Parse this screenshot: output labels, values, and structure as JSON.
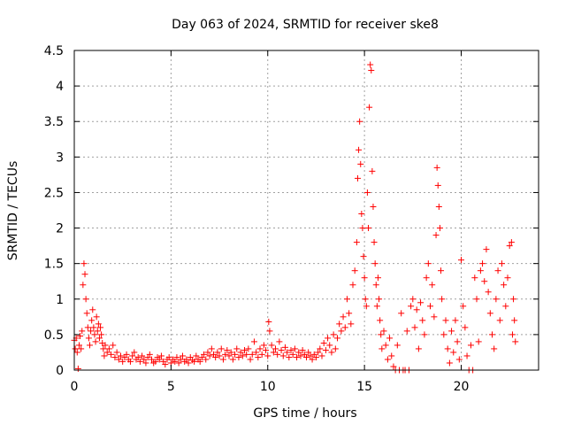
{
  "chart_data": {
    "type": "scatter",
    "title": "Day 063 of 2024, SRMTID for receiver ske8",
    "xlabel": "GPS time / hours",
    "ylabel": "SRMTID / TECUs",
    "xlim": [
      0,
      24
    ],
    "ylim": [
      0,
      4.5
    ],
    "xticks": [
      0,
      5,
      10,
      15,
      20
    ],
    "xtick_labels": [
      "0",
      "5",
      "10",
      "15",
      "20"
    ],
    "yticks": [
      0,
      0.5,
      1,
      1.5,
      2,
      2.5,
      3,
      3.5,
      4,
      4.5
    ],
    "ytick_labels": [
      "0",
      "0.5",
      "1",
      "1.5",
      "2",
      "2.5",
      "3",
      "3.5",
      "4",
      "4.5"
    ],
    "grid": true,
    "marker": "+",
    "series": [
      {
        "name": "SRMTID",
        "color": "#ff0000",
        "points": [
          [
            0.0,
            0.42
          ],
          [
            0.05,
            0.3
          ],
          [
            0.1,
            0.45
          ],
          [
            0.15,
            0.25
          ],
          [
            0.2,
            0.02
          ],
          [
            0.25,
            0.35
          ],
          [
            0.3,
            0.48
          ],
          [
            0.35,
            0.3
          ],
          [
            0.4,
            0.55
          ],
          [
            0.45,
            1.2
          ],
          [
            0.5,
            1.5
          ],
          [
            0.55,
            1.35
          ],
          [
            0.6,
            1.0
          ],
          [
            0.65,
            0.8
          ],
          [
            0.7,
            0.6
          ],
          [
            0.75,
            0.45
          ],
          [
            0.8,
            0.35
          ],
          [
            0.85,
            0.55
          ],
          [
            0.9,
            0.7
          ],
          [
            0.95,
            0.85
          ],
          [
            1.0,
            0.6
          ],
          [
            1.05,
            0.5
          ],
          [
            1.1,
            0.4
          ],
          [
            1.15,
            0.75
          ],
          [
            1.2,
            0.55
          ],
          [
            1.25,
            0.65
          ],
          [
            1.3,
            0.45
          ],
          [
            1.35,
            0.6
          ],
          [
            1.4,
            0.5
          ],
          [
            1.45,
            0.38
          ],
          [
            1.5,
            0.3
          ],
          [
            1.55,
            0.2
          ],
          [
            1.6,
            0.35
          ],
          [
            1.7,
            0.25
          ],
          [
            1.8,
            0.3
          ],
          [
            1.9,
            0.22
          ],
          [
            2.0,
            0.35
          ],
          [
            2.1,
            0.18
          ],
          [
            2.2,
            0.25
          ],
          [
            2.3,
            0.15
          ],
          [
            2.4,
            0.2
          ],
          [
            2.5,
            0.12
          ],
          [
            2.6,
            0.18
          ],
          [
            2.7,
            0.22
          ],
          [
            2.8,
            0.15
          ],
          [
            2.9,
            0.12
          ],
          [
            3.0,
            0.2
          ],
          [
            3.1,
            0.25
          ],
          [
            3.2,
            0.15
          ],
          [
            3.3,
            0.18
          ],
          [
            3.4,
            0.12
          ],
          [
            3.5,
            0.2
          ],
          [
            3.6,
            0.15
          ],
          [
            3.7,
            0.1
          ],
          [
            3.8,
            0.18
          ],
          [
            3.9,
            0.22
          ],
          [
            4.0,
            0.15
          ],
          [
            4.1,
            0.1
          ],
          [
            4.2,
            0.12
          ],
          [
            4.3,
            0.18
          ],
          [
            4.4,
            0.15
          ],
          [
            4.5,
            0.2
          ],
          [
            4.6,
            0.12
          ],
          [
            4.7,
            0.08
          ],
          [
            4.8,
            0.15
          ],
          [
            4.9,
            0.18
          ],
          [
            5.0,
            0.1
          ],
          [
            5.1,
            0.15
          ],
          [
            5.2,
            0.12
          ],
          [
            5.3,
            0.18
          ],
          [
            5.4,
            0.1
          ],
          [
            5.5,
            0.15
          ],
          [
            5.6,
            0.2
          ],
          [
            5.7,
            0.12
          ],
          [
            5.8,
            0.15
          ],
          [
            5.9,
            0.1
          ],
          [
            6.0,
            0.18
          ],
          [
            6.1,
            0.14
          ],
          [
            6.2,
            0.12
          ],
          [
            6.3,
            0.2
          ],
          [
            6.4,
            0.15
          ],
          [
            6.5,
            0.12
          ],
          [
            6.6,
            0.18
          ],
          [
            6.7,
            0.22
          ],
          [
            6.8,
            0.15
          ],
          [
            6.9,
            0.25
          ],
          [
            7.0,
            0.2
          ],
          [
            7.1,
            0.3
          ],
          [
            7.2,
            0.22
          ],
          [
            7.3,
            0.18
          ],
          [
            7.4,
            0.25
          ],
          [
            7.5,
            0.2
          ],
          [
            7.6,
            0.3
          ],
          [
            7.7,
            0.15
          ],
          [
            7.8,
            0.22
          ],
          [
            7.9,
            0.28
          ],
          [
            8.0,
            0.2
          ],
          [
            8.1,
            0.25
          ],
          [
            8.2,
            0.15
          ],
          [
            8.3,
            0.22
          ],
          [
            8.4,
            0.3
          ],
          [
            8.5,
            0.18
          ],
          [
            8.6,
            0.25
          ],
          [
            8.7,
            0.2
          ],
          [
            8.8,
            0.28
          ],
          [
            8.9,
            0.22
          ],
          [
            9.0,
            0.3
          ],
          [
            9.1,
            0.15
          ],
          [
            9.2,
            0.22
          ],
          [
            9.3,
            0.4
          ],
          [
            9.4,
            0.25
          ],
          [
            9.5,
            0.18
          ],
          [
            9.6,
            0.3
          ],
          [
            9.7,
            0.22
          ],
          [
            9.8,
            0.35
          ],
          [
            9.9,
            0.28
          ],
          [
            10.0,
            0.2
          ],
          [
            10.05,
            0.68
          ],
          [
            10.1,
            0.55
          ],
          [
            10.2,
            0.35
          ],
          [
            10.3,
            0.25
          ],
          [
            10.4,
            0.3
          ],
          [
            10.5,
            0.22
          ],
          [
            10.6,
            0.4
          ],
          [
            10.7,
            0.28
          ],
          [
            10.8,
            0.2
          ],
          [
            10.9,
            0.32
          ],
          [
            11.0,
            0.25
          ],
          [
            11.1,
            0.18
          ],
          [
            11.2,
            0.28
          ],
          [
            11.3,
            0.22
          ],
          [
            11.4,
            0.3
          ],
          [
            11.5,
            0.18
          ],
          [
            11.6,
            0.25
          ],
          [
            11.7,
            0.2
          ],
          [
            11.8,
            0.28
          ],
          [
            11.9,
            0.22
          ],
          [
            12.0,
            0.18
          ],
          [
            12.1,
            0.25
          ],
          [
            12.2,
            0.2
          ],
          [
            12.3,
            0.15
          ],
          [
            12.4,
            0.22
          ],
          [
            12.5,
            0.18
          ],
          [
            12.6,
            0.25
          ],
          [
            12.7,
            0.3
          ],
          [
            12.8,
            0.2
          ],
          [
            12.9,
            0.38
          ],
          [
            13.0,
            0.28
          ],
          [
            13.1,
            0.45
          ],
          [
            13.2,
            0.35
          ],
          [
            13.3,
            0.25
          ],
          [
            13.4,
            0.5
          ],
          [
            13.5,
            0.3
          ],
          [
            13.6,
            0.45
          ],
          [
            13.7,
            0.65
          ],
          [
            13.8,
            0.55
          ],
          [
            13.9,
            0.75
          ],
          [
            14.0,
            0.6
          ],
          [
            14.1,
            1.0
          ],
          [
            14.2,
            0.8
          ],
          [
            14.3,
            0.65
          ],
          [
            14.4,
            1.2
          ],
          [
            14.5,
            1.4
          ],
          [
            14.6,
            1.8
          ],
          [
            14.65,
            2.7
          ],
          [
            14.7,
            3.1
          ],
          [
            14.75,
            3.5
          ],
          [
            14.8,
            2.9
          ],
          [
            14.85,
            2.2
          ],
          [
            14.9,
            2.0
          ],
          [
            14.95,
            1.6
          ],
          [
            15.0,
            1.3
          ],
          [
            15.05,
            1.0
          ],
          [
            15.1,
            0.9
          ],
          [
            15.15,
            2.5
          ],
          [
            15.2,
            2.0
          ],
          [
            15.25,
            3.7
          ],
          [
            15.3,
            4.3
          ],
          [
            15.35,
            4.22
          ],
          [
            15.4,
            2.8
          ],
          [
            15.45,
            2.3
          ],
          [
            15.5,
            1.8
          ],
          [
            15.55,
            1.5
          ],
          [
            15.6,
            1.2
          ],
          [
            15.65,
            0.9
          ],
          [
            15.7,
            1.3
          ],
          [
            15.75,
            1.0
          ],
          [
            15.8,
            0.7
          ],
          [
            15.85,
            0.5
          ],
          [
            15.9,
            0.3
          ],
          [
            16.0,
            0.55
          ],
          [
            16.1,
            0.35
          ],
          [
            16.2,
            0.15
          ],
          [
            16.3,
            0.45
          ],
          [
            16.4,
            0.2
          ],
          [
            16.5,
            0.05
          ],
          [
            16.6,
            0.0
          ],
          [
            16.7,
            0.35
          ],
          [
            16.8,
            0.0
          ],
          [
            16.9,
            0.8
          ],
          [
            17.0,
            0.0
          ],
          [
            17.1,
            0.0
          ],
          [
            17.2,
            0.55
          ],
          [
            17.3,
            0.0
          ],
          [
            17.4,
            0.9
          ],
          [
            17.5,
            1.0
          ],
          [
            17.6,
            0.6
          ],
          [
            17.7,
            0.85
          ],
          [
            17.8,
            0.3
          ],
          [
            17.9,
            0.95
          ],
          [
            18.0,
            0.7
          ],
          [
            18.1,
            0.5
          ],
          [
            18.2,
            1.3
          ],
          [
            18.3,
            1.5
          ],
          [
            18.4,
            0.9
          ],
          [
            18.5,
            1.2
          ],
          [
            18.6,
            0.75
          ],
          [
            18.7,
            1.9
          ],
          [
            18.75,
            2.85
          ],
          [
            18.8,
            2.6
          ],
          [
            18.85,
            2.3
          ],
          [
            18.9,
            2.0
          ],
          [
            18.95,
            1.4
          ],
          [
            19.0,
            1.0
          ],
          [
            19.1,
            0.5
          ],
          [
            19.2,
            0.7
          ],
          [
            19.3,
            0.3
          ],
          [
            19.4,
            0.1
          ],
          [
            19.5,
            0.55
          ],
          [
            19.6,
            0.25
          ],
          [
            19.7,
            0.7
          ],
          [
            19.8,
            0.4
          ],
          [
            19.9,
            0.15
          ],
          [
            20.0,
            1.55
          ],
          [
            20.1,
            0.9
          ],
          [
            20.2,
            0.6
          ],
          [
            20.3,
            0.2
          ],
          [
            20.4,
            0.0
          ],
          [
            20.5,
            0.35
          ],
          [
            20.6,
            0.0
          ],
          [
            20.7,
            1.3
          ],
          [
            20.8,
            1.0
          ],
          [
            20.9,
            0.4
          ],
          [
            21.0,
            1.4
          ],
          [
            21.1,
            1.5
          ],
          [
            21.2,
            1.25
          ],
          [
            21.3,
            1.7
          ],
          [
            21.4,
            1.1
          ],
          [
            21.5,
            0.8
          ],
          [
            21.6,
            0.5
          ],
          [
            21.7,
            0.3
          ],
          [
            21.8,
            1.0
          ],
          [
            21.9,
            1.4
          ],
          [
            22.0,
            0.7
          ],
          [
            22.1,
            1.5
          ],
          [
            22.2,
            1.2
          ],
          [
            22.3,
            0.9
          ],
          [
            22.4,
            1.3
          ],
          [
            22.5,
            1.75
          ],
          [
            22.6,
            1.8
          ],
          [
            22.65,
            0.5
          ],
          [
            22.7,
            1.0
          ],
          [
            22.75,
            0.7
          ],
          [
            22.8,
            0.4
          ]
        ]
      }
    ]
  }
}
